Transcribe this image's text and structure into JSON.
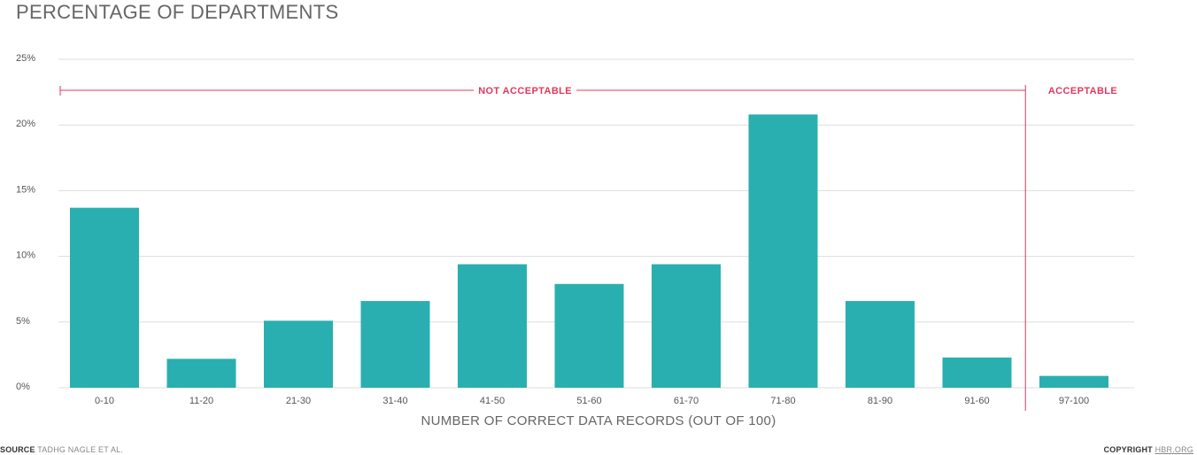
{
  "chart_data": {
    "type": "bar",
    "title": "PERCENTAGE OF DEPARTMENTS",
    "xlabel": "NUMBER OF CORRECT DATA RECORDS (OUT OF 100)",
    "ylabel": "PERCENTAGE OF DEPARTMENTS",
    "categories": [
      "0-10",
      "11-20",
      "21-30",
      "31-40",
      "41-50",
      "51-60",
      "61-70",
      "71-80",
      "81-90",
      "91-60",
      "97-100"
    ],
    "values": [
      13.7,
      2.2,
      5.1,
      6.6,
      9.4,
      7.9,
      9.4,
      20.8,
      6.6,
      2.3,
      0.9
    ],
    "ylim": [
      0,
      25
    ],
    "yticks": [
      0,
      5,
      10,
      15,
      20,
      25
    ],
    "ytick_labels": [
      "0%",
      "5%",
      "10%",
      "15%",
      "20%",
      "25%"
    ],
    "grid": true,
    "bar_color": "#2aafb0",
    "annotations": [
      {
        "label": "NOT ACCEPTABLE",
        "from_category": 0,
        "to_category": 9,
        "color": "#e0395e"
      },
      {
        "label": "ACCEPTABLE",
        "from_category": 10,
        "to_category": 10,
        "color": "#e0395e"
      }
    ]
  },
  "footer": {
    "source_label": "SOURCE",
    "source_text": "TADHG NAGLE ET AL.",
    "copyright_label": "COPYRIGHT",
    "copyright_link": "HBR.ORG"
  },
  "colors": {
    "grid": "#dddddd",
    "axis_text": "#555555",
    "accent": "#e0395e",
    "bar": "#2aafb0"
  }
}
